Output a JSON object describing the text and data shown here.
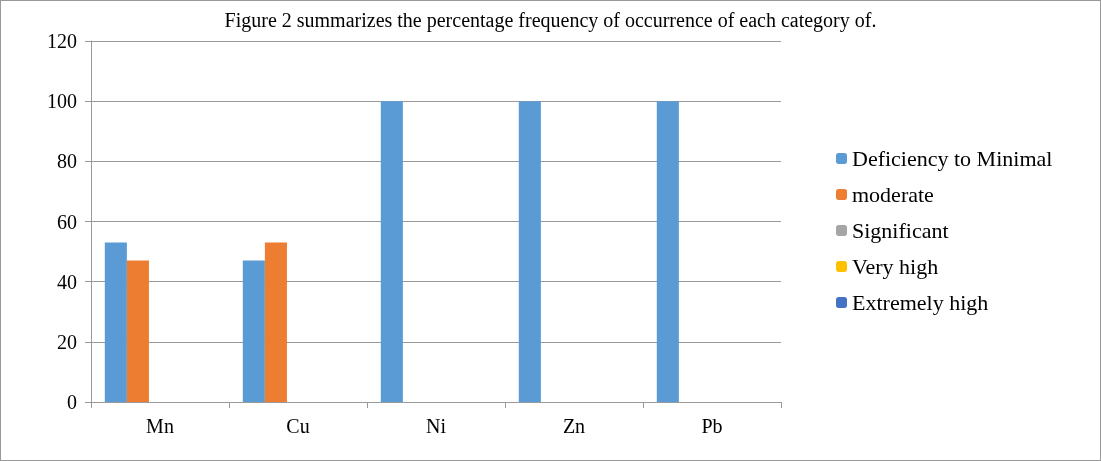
{
  "chart_data": {
    "type": "bar",
    "title": "Figure 2 summarizes the percentage frequency of occurrence of each category of.",
    "categories": [
      "Mn",
      "Cu",
      "Ni",
      "Zn",
      "Pb"
    ],
    "series": [
      {
        "name": "Deficiency to Minimal",
        "color": "#5b9bd5",
        "values": [
          53,
          47,
          100,
          100,
          100
        ]
      },
      {
        "name": "moderate",
        "color": "#ed7d31",
        "values": [
          47,
          53,
          0,
          0,
          0
        ]
      },
      {
        "name": "Significant",
        "color": "#a5a5a5",
        "values": [
          0,
          0,
          0,
          0,
          0
        ]
      },
      {
        "name": "Very high",
        "color": "#ffc000",
        "values": [
          0,
          0,
          0,
          0,
          0
        ]
      },
      {
        "name": "Extremely high",
        "color": "#4472c4",
        "values": [
          0,
          0,
          0,
          0,
          0
        ]
      }
    ],
    "ylim": [
      0,
      120
    ],
    "yticks": [
      0,
      20,
      40,
      60,
      80,
      100,
      120
    ],
    "grid": "y",
    "legend": "right"
  }
}
